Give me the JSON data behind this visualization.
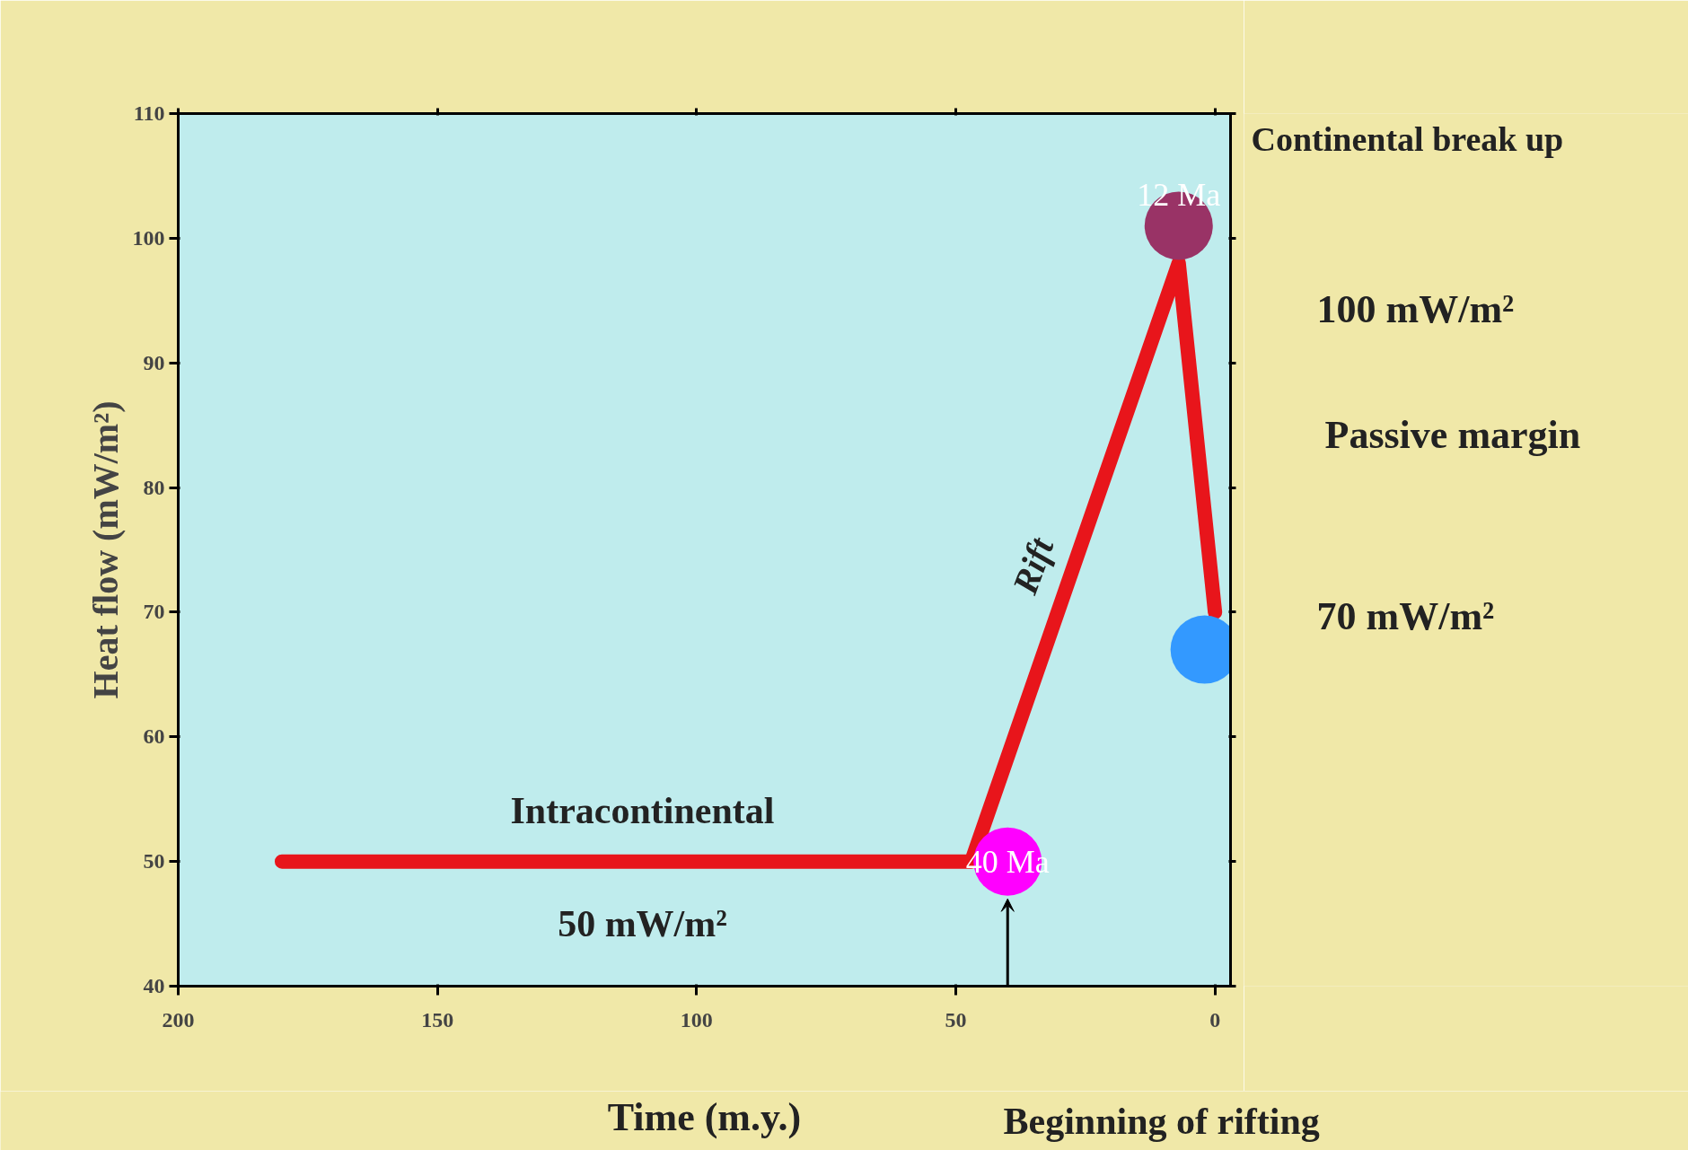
{
  "chart_data": {
    "type": "line",
    "xlabel": "Time (m.y.)",
    "ylabel": "Heat flow (mW/m²)",
    "xlim": [
      200,
      -3
    ],
    "ylim": [
      40,
      110
    ],
    "xticks": [
      200,
      150,
      100,
      50,
      0
    ],
    "yticks": [
      40,
      50,
      60,
      70,
      80,
      90,
      100,
      110
    ],
    "grid": false,
    "series": [
      {
        "color": "#e8151b",
        "x": [
          180,
          47,
          7,
          0
        ],
        "values": [
          50,
          50,
          98,
          70
        ]
      },
      {
        "type": "scatter",
        "marker": "circle",
        "colors": [
          "#ff00ff",
          "#993366",
          "#3399ff"
        ],
        "x": [
          40,
          7,
          2
        ],
        "values": [
          50,
          101,
          67
        ]
      }
    ],
    "annotations": [
      {
        "text": "40 Ma",
        "x": 40,
        "y": 50
      },
      {
        "text": "12 Ma",
        "x": 7,
        "y": 101
      },
      "Intracontinental",
      "50 mW/m²",
      "Rift",
      "Beginning of rifting",
      "Continental break up",
      "100 mW/m²",
      "Passive margin",
      "70 mW/m²"
    ]
  }
}
